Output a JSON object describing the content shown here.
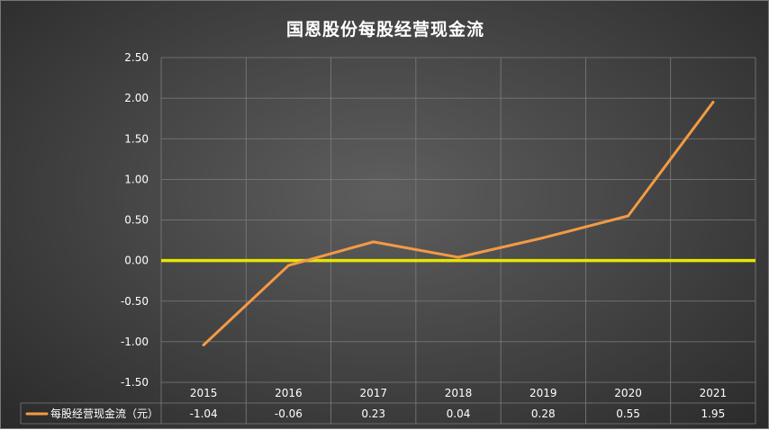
{
  "chart_data": {
    "type": "line",
    "title": "国恩股份每股经营现金流",
    "categories": [
      "2015",
      "2016",
      "2017",
      "2018",
      "2019",
      "2020",
      "2021"
    ],
    "series": [
      {
        "name": "每股经营现金流（元）",
        "values": [
          -1.04,
          -0.06,
          0.23,
          0.04,
          0.28,
          0.55,
          1.95
        ],
        "labels": [
          "-1.04",
          "-0.06",
          "0.23",
          "0.04",
          "0.28",
          "0.55",
          "1.95"
        ],
        "color": "#f39a45"
      }
    ],
    "yticks": [
      "2.50",
      "2.00",
      "1.50",
      "1.00",
      "0.50",
      "0.00",
      "-0.50",
      "-1.00",
      "-1.50"
    ],
    "ylim": [
      -1.5,
      2.5
    ],
    "zero_line_color": "#e6e600",
    "grid": true,
    "data_table": true
  }
}
